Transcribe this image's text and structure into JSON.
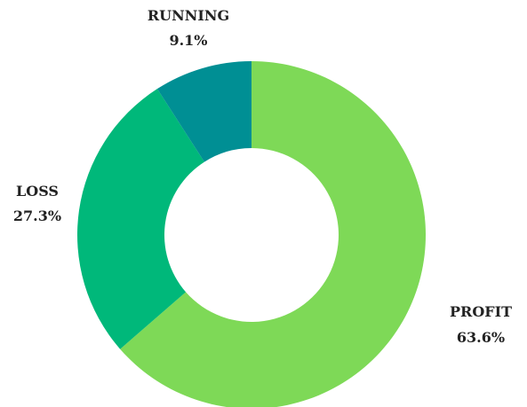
{
  "chart_data": {
    "type": "pie",
    "variant": "donut",
    "title": "",
    "legend": "none",
    "slices": [
      {
        "label": "PROFIT",
        "value": 63.6,
        "value_label": "63.6%",
        "color": "#7ed957"
      },
      {
        "label": "LOSS",
        "value": 27.3,
        "value_label": "27.3%",
        "color": "#00b87a"
      },
      {
        "label": "RUNNING",
        "value": 9.1,
        "value_label": "9.1%",
        "color": "#008f94"
      }
    ],
    "start_angle_deg": 0,
    "direction": "clockwise",
    "label_position": "outside"
  }
}
